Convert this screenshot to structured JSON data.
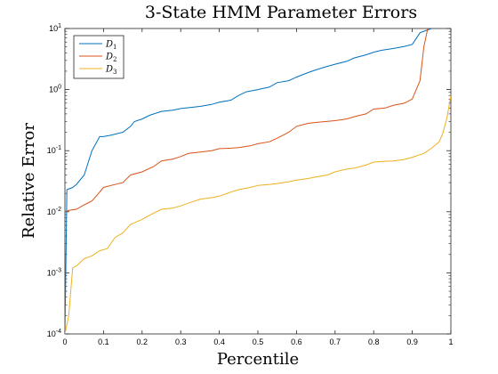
{
  "chart_data": {
    "type": "line",
    "title": "3-State HMM Parameter Errors",
    "xlabel": "Percentile",
    "ylabel": "Relative Error",
    "xlim": [
      0,
      1
    ],
    "ylim": [
      0.0001,
      10
    ],
    "yscale": "log",
    "grid": false,
    "legend_position": "top-left",
    "x_ticks": [
      "0",
      "0.1",
      "0.2",
      "0.3",
      "0.4",
      "0.5",
      "0.6",
      "0.7",
      "0.8",
      "0.9",
      "1"
    ],
    "y_ticks": [
      {
        "base": "10",
        "exp": "-4",
        "value": 0.0001
      },
      {
        "base": "10",
        "exp": "-3",
        "value": 0.001
      },
      {
        "base": "10",
        "exp": "-2",
        "value": 0.01
      },
      {
        "base": "10",
        "exp": "-1",
        "value": 0.1
      },
      {
        "base": "10",
        "exp": "0",
        "value": 1
      },
      {
        "base": "10",
        "exp": "1",
        "value": 10
      }
    ],
    "series": [
      {
        "name": "D",
        "sub": "1",
        "color": "#0072BD",
        "points": [
          [
            0,
            0.0001
          ],
          [
            0.005,
            0.023
          ],
          [
            0.02,
            0.025
          ],
          [
            0.03,
            0.028
          ],
          [
            0.05,
            0.04
          ],
          [
            0.07,
            0.1
          ],
          [
            0.09,
            0.17
          ],
          [
            0.1,
            0.17
          ],
          [
            0.12,
            0.18
          ],
          [
            0.15,
            0.2
          ],
          [
            0.17,
            0.25
          ],
          [
            0.18,
            0.3
          ],
          [
            0.2,
            0.33
          ],
          [
            0.22,
            0.38
          ],
          [
            0.25,
            0.44
          ],
          [
            0.28,
            0.46
          ],
          [
            0.3,
            0.49
          ],
          [
            0.35,
            0.53
          ],
          [
            0.38,
            0.57
          ],
          [
            0.4,
            0.62
          ],
          [
            0.43,
            0.67
          ],
          [
            0.45,
            0.8
          ],
          [
            0.47,
            0.92
          ],
          [
            0.5,
            1.0
          ],
          [
            0.53,
            1.1
          ],
          [
            0.55,
            1.3
          ],
          [
            0.58,
            1.4
          ],
          [
            0.6,
            1.6
          ],
          [
            0.63,
            1.9
          ],
          [
            0.65,
            2.1
          ],
          [
            0.68,
            2.4
          ],
          [
            0.7,
            2.6
          ],
          [
            0.73,
            2.9
          ],
          [
            0.75,
            3.3
          ],
          [
            0.78,
            3.7
          ],
          [
            0.8,
            4.1
          ],
          [
            0.82,
            4.4
          ],
          [
            0.85,
            4.7
          ],
          [
            0.88,
            5.1
          ],
          [
            0.9,
            5.5
          ],
          [
            0.92,
            8.5
          ],
          [
            0.93,
            9.0
          ],
          [
            0.95,
            10
          ]
        ]
      },
      {
        "name": "D",
        "sub": "2",
        "color": "#D95319",
        "points": [
          [
            0,
            0.01
          ],
          [
            0.01,
            0.0105
          ],
          [
            0.03,
            0.011
          ],
          [
            0.05,
            0.013
          ],
          [
            0.07,
            0.015
          ],
          [
            0.09,
            0.021
          ],
          [
            0.1,
            0.025
          ],
          [
            0.12,
            0.027
          ],
          [
            0.15,
            0.03
          ],
          [
            0.17,
            0.04
          ],
          [
            0.2,
            0.045
          ],
          [
            0.23,
            0.055
          ],
          [
            0.25,
            0.068
          ],
          [
            0.28,
            0.073
          ],
          [
            0.3,
            0.08
          ],
          [
            0.32,
            0.09
          ],
          [
            0.35,
            0.095
          ],
          [
            0.38,
            0.1
          ],
          [
            0.4,
            0.108
          ],
          [
            0.43,
            0.11
          ],
          [
            0.45,
            0.112
          ],
          [
            0.48,
            0.12
          ],
          [
            0.5,
            0.13
          ],
          [
            0.53,
            0.14
          ],
          [
            0.55,
            0.16
          ],
          [
            0.58,
            0.2
          ],
          [
            0.6,
            0.25
          ],
          [
            0.63,
            0.28
          ],
          [
            0.65,
            0.29
          ],
          [
            0.7,
            0.31
          ],
          [
            0.73,
            0.33
          ],
          [
            0.75,
            0.36
          ],
          [
            0.78,
            0.4
          ],
          [
            0.8,
            0.48
          ],
          [
            0.83,
            0.5
          ],
          [
            0.85,
            0.55
          ],
          [
            0.88,
            0.6
          ],
          [
            0.9,
            0.7
          ],
          [
            0.92,
            1.4
          ],
          [
            0.93,
            5
          ],
          [
            0.94,
            10
          ]
        ]
      },
      {
        "name": "D",
        "sub": "3",
        "color": "#EDB120",
        "points": [
          [
            0,
            0.0001
          ],
          [
            0.01,
            0.0002
          ],
          [
            0.02,
            0.0012
          ],
          [
            0.03,
            0.0013
          ],
          [
            0.05,
            0.0017
          ],
          [
            0.07,
            0.0019
          ],
          [
            0.09,
            0.0023
          ],
          [
            0.11,
            0.0025
          ],
          [
            0.13,
            0.0038
          ],
          [
            0.15,
            0.0045
          ],
          [
            0.17,
            0.0062
          ],
          [
            0.2,
            0.0075
          ],
          [
            0.22,
            0.0088
          ],
          [
            0.25,
            0.011
          ],
          [
            0.28,
            0.0115
          ],
          [
            0.3,
            0.0125
          ],
          [
            0.33,
            0.0145
          ],
          [
            0.35,
            0.016
          ],
          [
            0.38,
            0.017
          ],
          [
            0.4,
            0.018
          ],
          [
            0.43,
            0.021
          ],
          [
            0.45,
            0.023
          ],
          [
            0.48,
            0.025
          ],
          [
            0.5,
            0.027
          ],
          [
            0.53,
            0.028
          ],
          [
            0.55,
            0.029
          ],
          [
            0.58,
            0.031
          ],
          [
            0.6,
            0.033
          ],
          [
            0.63,
            0.035
          ],
          [
            0.65,
            0.037
          ],
          [
            0.68,
            0.04
          ],
          [
            0.7,
            0.045
          ],
          [
            0.73,
            0.05
          ],
          [
            0.75,
            0.052
          ],
          [
            0.78,
            0.058
          ],
          [
            0.8,
            0.065
          ],
          [
            0.83,
            0.067
          ],
          [
            0.85,
            0.068
          ],
          [
            0.88,
            0.072
          ],
          [
            0.9,
            0.078
          ],
          [
            0.93,
            0.09
          ],
          [
            0.95,
            0.11
          ],
          [
            0.97,
            0.14
          ],
          [
            0.98,
            0.2
          ],
          [
            0.99,
            0.35
          ],
          [
            1.0,
            0.8
          ]
        ]
      }
    ]
  }
}
